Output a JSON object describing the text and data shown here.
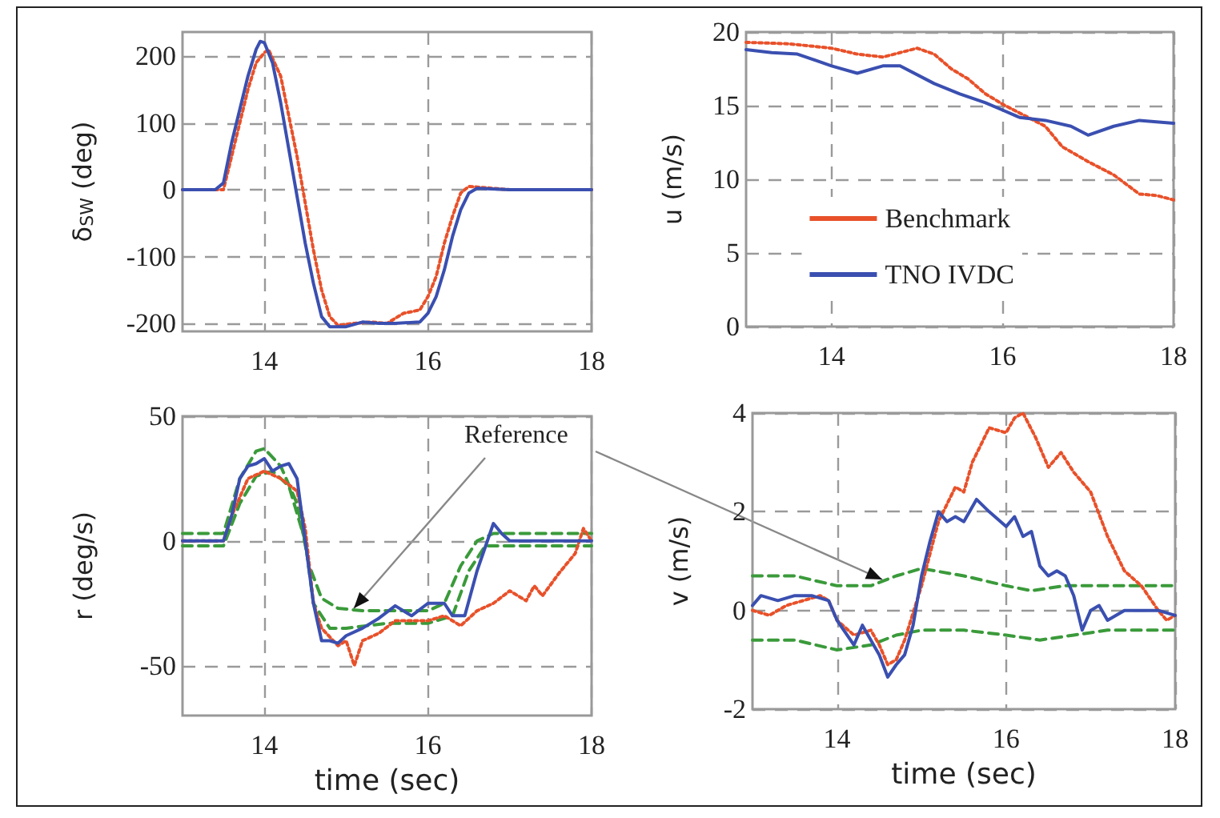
{
  "chart_data": [
    {
      "type": "line",
      "ylabel": "δ$_{SW}$ (deg)",
      "xlim": [
        13,
        18
      ],
      "xticks": [
        14,
        16,
        18
      ],
      "ylim": [
        -212,
        236
      ],
      "yticks": [
        -200,
        -100,
        0,
        100,
        200
      ],
      "grid": true,
      "legend": false,
      "series": [
        {
          "color": "#e8512a",
          "line_style": "dotted",
          "x": [
            13,
            13.5,
            13.6,
            13.7,
            13.8,
            13.9,
            14.0,
            14.05,
            14.2,
            14.3,
            14.4,
            14.5,
            14.6,
            14.7,
            14.8,
            14.9,
            15.1,
            15.3,
            15.5,
            15.7,
            15.9,
            16.0,
            16.1,
            16.2,
            16.3,
            16.4,
            16.5,
            17,
            18
          ],
          "values": [
            0,
            0,
            50,
            100,
            150,
            190,
            205,
            210,
            170,
            110,
            50,
            -20,
            -90,
            -150,
            -190,
            -203,
            -200,
            -198,
            -200,
            -185,
            -180,
            -160,
            -130,
            -80,
            -40,
            -5,
            5,
            0,
            0
          ]
        },
        {
          "color": "#3a4fb0",
          "line_style": "solid",
          "x": [
            13,
            13.4,
            13.5,
            13.6,
            13.7,
            13.8,
            13.9,
            13.95,
            14.0,
            14.1,
            14.2,
            14.3,
            14.4,
            14.5,
            14.6,
            14.7,
            14.8,
            15.0,
            15.2,
            15.4,
            15.6,
            15.9,
            16.0,
            16.1,
            16.2,
            16.3,
            16.4,
            16.5,
            16.6,
            17,
            18
          ],
          "values": [
            0,
            0,
            10,
            70,
            120,
            170,
            210,
            222,
            220,
            190,
            130,
            60,
            -10,
            -80,
            -140,
            -190,
            -205,
            -205,
            -198,
            -200,
            -200,
            -198,
            -185,
            -160,
            -120,
            -70,
            -30,
            -5,
            2,
            0,
            0
          ]
        }
      ]
    },
    {
      "type": "line",
      "ylabel": "u (m/s)",
      "xlim": [
        13,
        18
      ],
      "xticks": [
        14,
        16,
        18
      ],
      "ylim": [
        0,
        20
      ],
      "yticks": [
        0,
        5,
        10,
        15,
        20
      ],
      "grid": true,
      "legend": "center",
      "series": [
        {
          "name": "Benchmark",
          "color": "#e8512a",
          "line_style": "dotted",
          "x": [
            13,
            13.5,
            14,
            14.3,
            14.6,
            14.8,
            15.0,
            15.2,
            15.4,
            15.6,
            15.8,
            16.0,
            16.2,
            16.5,
            16.7,
            17.0,
            17.3,
            17.6,
            17.8,
            18
          ],
          "values": [
            19.3,
            19.2,
            18.9,
            18.5,
            18.3,
            18.6,
            18.9,
            18.5,
            17.5,
            16.8,
            15.8,
            15.1,
            14.5,
            13.6,
            12.2,
            11.2,
            10.3,
            9.0,
            8.9,
            8.6
          ]
        },
        {
          "name": "TNO IVDC",
          "color": "#3a4fb0",
          "line_style": "solid",
          "x": [
            13,
            13.3,
            13.6,
            14,
            14.3,
            14.6,
            14.8,
            15.2,
            15.5,
            15.8,
            16.0,
            16.2,
            16.5,
            16.8,
            17.0,
            17.3,
            17.6,
            18
          ],
          "values": [
            18.8,
            18.6,
            18.5,
            17.7,
            17.2,
            17.7,
            17.7,
            16.5,
            15.8,
            15.2,
            14.7,
            14.2,
            14.0,
            13.6,
            13.0,
            13.6,
            14.0,
            13.8
          ]
        }
      ]
    },
    {
      "type": "line",
      "ylabel": "r (deg/s)",
      "xlabel": "time (sec)",
      "xlim": [
        13,
        18
      ],
      "xticks": [
        14,
        16,
        18
      ],
      "ylim": [
        -70,
        50
      ],
      "yticks": [
        -50,
        0,
        50
      ],
      "grid": true,
      "legend": false,
      "annotations": [
        "Reference"
      ],
      "series": [
        {
          "color": "#3a9a3a",
          "line_style": "dashed",
          "x": [
            13,
            13.5,
            13.7,
            13.9,
            14.0,
            14.2,
            14.4,
            14.55,
            14.7,
            14.9,
            15.2,
            15.6,
            16.0,
            16.2,
            16.4,
            16.6,
            16.8,
            18
          ],
          "values": [
            3,
            3,
            25,
            36,
            37,
            30,
            15,
            -10,
            -23,
            -27,
            -28,
            -28,
            -28,
            -25,
            -10,
            0,
            3,
            3
          ]
        },
        {
          "color": "#3a9a3a",
          "line_style": "dashed",
          "x": [
            13,
            13.5,
            13.7,
            13.9,
            14.1,
            14.3,
            14.5,
            14.6,
            14.8,
            15.0,
            15.5,
            16.0,
            16.3,
            16.5,
            16.7,
            17,
            18
          ],
          "values": [
            -2,
            -2,
            15,
            26,
            28,
            22,
            0,
            -25,
            -35,
            -35,
            -33,
            -33,
            -30,
            -12,
            -2,
            -2,
            -2
          ]
        },
        {
          "color": "#e8512a",
          "line_style": "dotted",
          "x": [
            13,
            13.5,
            13.6,
            13.8,
            14,
            14.2,
            14.4,
            14.5,
            14.6,
            14.7,
            14.9,
            15.0,
            15.1,
            15.2,
            15.4,
            15.6,
            15.8,
            16,
            16.2,
            16.4,
            16.6,
            16.8,
            17.0,
            17.2,
            17.3,
            17.4,
            17.6,
            17.8,
            17.9,
            18
          ],
          "values": [
            0,
            0,
            10,
            25,
            28,
            25,
            20,
            5,
            -25,
            -35,
            -42,
            -40,
            -50,
            -40,
            -37,
            -32,
            -32,
            -32,
            -30,
            -34,
            -28,
            -25,
            -20,
            -24,
            -18,
            -22,
            -13,
            -5,
            5,
            0
          ]
        },
        {
          "color": "#3a4fb0",
          "line_style": "solid",
          "x": [
            13,
            13.5,
            13.6,
            13.7,
            13.8,
            13.9,
            14.0,
            14.1,
            14.2,
            14.3,
            14.4,
            14.5,
            14.6,
            14.7,
            14.8,
            14.9,
            15.0,
            15.2,
            15.4,
            15.6,
            15.8,
            16.0,
            16.2,
            16.3,
            16.45,
            16.6,
            16.8,
            16.9,
            17.0,
            17.5,
            18
          ],
          "values": [
            0,
            0,
            10,
            25,
            30,
            31,
            33,
            28,
            30,
            31,
            25,
            0,
            -25,
            -40,
            -40,
            -41,
            -38,
            -35,
            -31,
            -26,
            -30,
            -25,
            -25,
            -30,
            -30,
            -12,
            7,
            3,
            0,
            0,
            0
          ]
        }
      ]
    },
    {
      "type": "line",
      "ylabel": "v (m/s)",
      "xlabel": "time (sec)",
      "xlim": [
        13,
        18
      ],
      "xticks": [
        14,
        16,
        18
      ],
      "ylim": [
        -2,
        4
      ],
      "yticks": [
        -2,
        0,
        2,
        4
      ],
      "grid": true,
      "legend": false,
      "series": [
        {
          "color": "#3a9a3a",
          "line_style": "dashed",
          "x": [
            13,
            13.5,
            14,
            14.4,
            14.7,
            15.0,
            15.5,
            16.0,
            16.3,
            16.7,
            18
          ],
          "values": [
            0.7,
            0.7,
            0.5,
            0.5,
            0.7,
            0.85,
            0.7,
            0.5,
            0.4,
            0.5,
            0.5
          ]
        },
        {
          "color": "#3a9a3a",
          "line_style": "dashed",
          "x": [
            13,
            13.5,
            14,
            14.4,
            14.7,
            15.0,
            15.5,
            16.0,
            16.4,
            16.8,
            17.2,
            18
          ],
          "values": [
            -0.6,
            -0.6,
            -0.8,
            -0.7,
            -0.5,
            -0.4,
            -0.4,
            -0.5,
            -0.6,
            -0.5,
            -0.4,
            -0.4
          ]
        },
        {
          "color": "#e8512a",
          "line_style": "dotted",
          "x": [
            13,
            13.2,
            13.4,
            13.6,
            13.8,
            13.9,
            14.0,
            14.2,
            14.4,
            14.5,
            14.6,
            14.7,
            14.8,
            15.0,
            15.2,
            15.4,
            15.5,
            15.6,
            15.8,
            16.0,
            16.1,
            16.2,
            16.35,
            16.5,
            16.65,
            16.8,
            17.0,
            17.2,
            17.4,
            17.6,
            17.8,
            17.9,
            18
          ],
          "values": [
            0,
            -0.1,
            0.1,
            0.2,
            0.3,
            0.2,
            -0.2,
            -0.5,
            -0.4,
            -0.7,
            -1.1,
            -1.0,
            -0.6,
            0.5,
            1.8,
            2.5,
            2.4,
            3.0,
            3.7,
            3.6,
            3.9,
            4.0,
            3.5,
            2.9,
            3.2,
            2.8,
            2.4,
            1.5,
            0.8,
            0.5,
            0.0,
            -0.2,
            -0.1
          ]
        },
        {
          "color": "#3a4fb0",
          "line_style": "solid",
          "x": [
            13,
            13.1,
            13.3,
            13.5,
            13.7,
            13.9,
            14.0,
            14.2,
            14.3,
            14.4,
            14.5,
            14.6,
            14.7,
            14.8,
            14.9,
            15.0,
            15.1,
            15.2,
            15.3,
            15.4,
            15.5,
            15.65,
            15.8,
            16.0,
            16.1,
            16.2,
            16.3,
            16.4,
            16.5,
            16.6,
            16.7,
            16.8,
            16.9,
            17.0,
            17.1,
            17.2,
            17.4,
            17.6,
            17.8,
            18
          ],
          "values": [
            0.1,
            0.3,
            0.2,
            0.3,
            0.3,
            0.2,
            -0.2,
            -0.7,
            -0.3,
            -0.6,
            -0.9,
            -1.35,
            -1.1,
            -0.9,
            -0.3,
            0.7,
            1.4,
            2.0,
            1.8,
            1.9,
            1.8,
            2.25,
            2.0,
            1.7,
            1.9,
            1.5,
            1.6,
            0.9,
            0.7,
            0.8,
            0.7,
            0.3,
            -0.4,
            0.0,
            0.1,
            -0.2,
            0.0,
            0.0,
            0.0,
            -0.1
          ]
        }
      ]
    }
  ]
}
